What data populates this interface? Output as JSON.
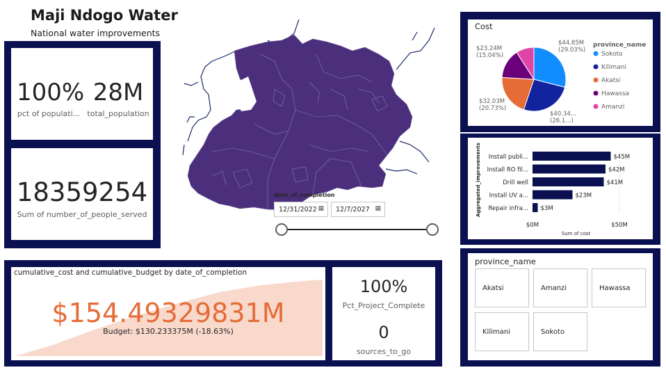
{
  "header": {
    "title": "Maji Ndogo Water",
    "subtitle": "National water improvements"
  },
  "kpis": {
    "pct_population": {
      "value": "100%",
      "label": "pct of populati..."
    },
    "total_population": {
      "value": "28M",
      "label": "total_population"
    },
    "people_served": {
      "value": "18359254",
      "label": "Sum of number_of_people_served"
    },
    "pct_project_complete": {
      "value": "100%",
      "label": "Pct_Project_Complete"
    },
    "sources_to_go": {
      "value": "0",
      "label": "sources_to_go"
    }
  },
  "date_slicer": {
    "label": "date_of_completion",
    "start": "12/31/2022",
    "end": "12/7/2027",
    "calendar_icon": "calendar-icon"
  },
  "cumulative": {
    "title": "cumulative_cost and cumulative_budget by date_of_completion",
    "value": "$154.49329831M",
    "budget": "Budget: $130.233375M (-18.63%)",
    "warning": "!",
    "value_color": "#e66c37",
    "area_color": "#f8d9cc"
  },
  "province_slicer": {
    "label": "province_name",
    "items": [
      "Akatsi",
      "Amanzi",
      "Hawassa",
      "Kilimani",
      "Sokoto"
    ]
  },
  "colors": {
    "frame": "#0b1150",
    "map_fill": "#4b2f7d",
    "water": "#1a2a6c"
  },
  "chart_data": [
    {
      "type": "pie",
      "title": "Cost",
      "legend_title": "province_name",
      "legend_position": "right",
      "slices": [
        {
          "name": "Sokoto",
          "value": 44.85,
          "label": "$44.85M",
          "pct": "(29.03%)",
          "color": "#118dff"
        },
        {
          "name": "Kilimani",
          "value": 40.34,
          "label": "$40.34...",
          "pct": "(26.1...)",
          "color": "#12239e"
        },
        {
          "name": "Akatsi",
          "value": 32.03,
          "label": "$32.03M",
          "pct": "(20.73%)",
          "color": "#e66c37"
        },
        {
          "name": "Hawassa",
          "value": 23.24,
          "label": "$23.24M",
          "pct": "(15.04%)",
          "color": "#6b007b"
        },
        {
          "name": "Amanzi",
          "value": 14.0,
          "label": "",
          "pct": "",
          "color": "#e044a7"
        }
      ]
    },
    {
      "type": "bar",
      "orientation": "horizontal",
      "ylabel": "Aggregated_improvements",
      "xlabel": "Sum of cost",
      "xlim": [
        0,
        50
      ],
      "xticks": [
        "$0M",
        "$50M"
      ],
      "bar_color": "#0b1150",
      "categories": [
        "Install publi...",
        "Install RO fil...",
        "Drill well",
        "Install UV a...",
        "Repair infra..."
      ],
      "values": [
        45,
        42,
        41,
        23,
        3
      ],
      "value_labels": [
        "$45M",
        "$42M",
        "$41M",
        "$23M",
        "$3M"
      ]
    }
  ]
}
